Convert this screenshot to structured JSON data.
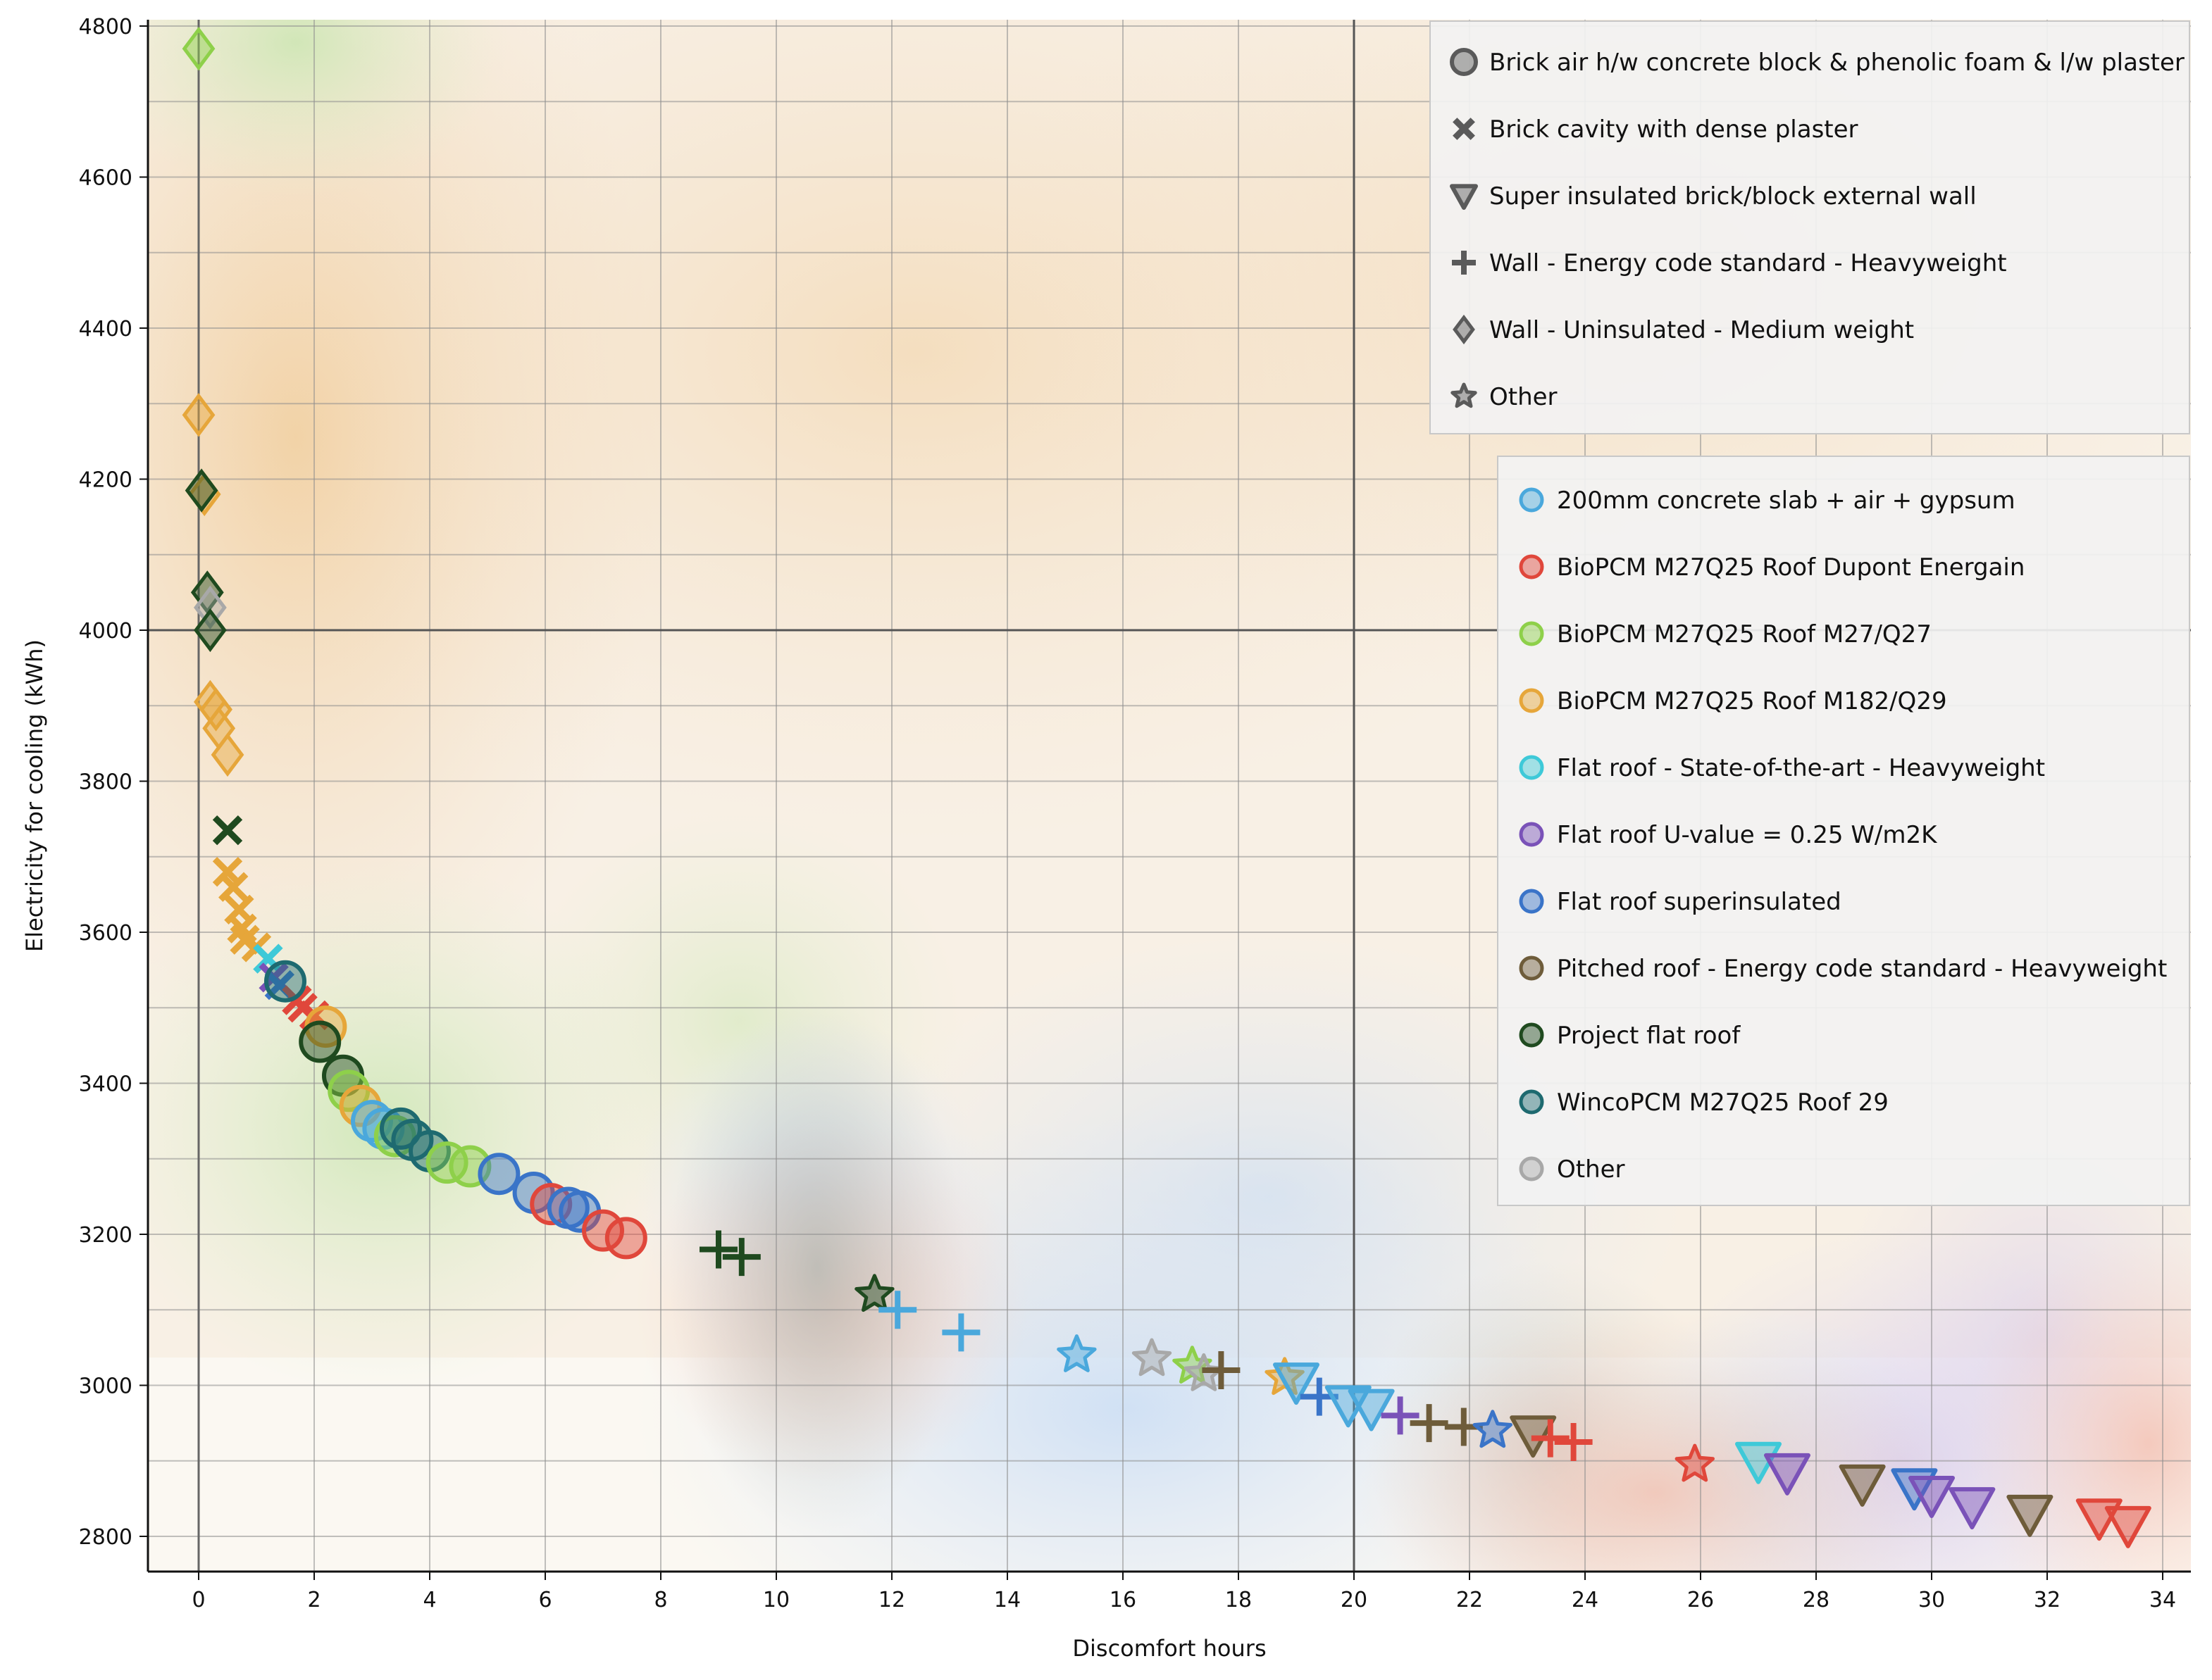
{
  "chart_data": {
    "type": "scatter",
    "xlabel": "Discomfort hours",
    "ylabel": "Electricity for cooling (kWh)",
    "xlim": [
      -0.9,
      34.3
    ],
    "ylim": [
      2765,
      4825
    ],
    "xticks": [
      0,
      2,
      4,
      6,
      8,
      10,
      12,
      14,
      16,
      18,
      20,
      22,
      24,
      26,
      28,
      30,
      32,
      34
    ],
    "yticks": [
      2800,
      3000,
      3200,
      3400,
      3600,
      3800,
      4000,
      4200,
      4400,
      4600,
      4800
    ],
    "grid": true,
    "reference_lines": {
      "x": 20,
      "y": 4000
    },
    "shape_legend": {
      "placement": "top-right",
      "items": [
        {
          "shape": "circle",
          "label": "Brick air h/w concrete block & phenolic foam & l/w plaster"
        },
        {
          "shape": "cross",
          "label": "Brick cavity with dense plaster"
        },
        {
          "shape": "triangle",
          "label": "Super insulated brick/block external wall"
        },
        {
          "shape": "plus",
          "label": "Wall - Energy code standard - Heavyweight"
        },
        {
          "shape": "diamond",
          "label": "Wall - Uninsulated - Medium weight"
        },
        {
          "shape": "star",
          "label": "Other"
        }
      ]
    },
    "color_legend": {
      "placement": "right",
      "items": [
        {
          "color": "#4aa8dc",
          "label": "200mm concrete slab + air + gypsum"
        },
        {
          "color": "#e0473b",
          "label": "BioPCM M27Q25 Roof Dupont Energain"
        },
        {
          "color": "#8ed04a",
          "label": "BioPCM M27Q25 Roof M27/Q27"
        },
        {
          "color": "#e6a63a",
          "label": "BioPCM M27Q25 Roof M182/Q29"
        },
        {
          "color": "#3ec9d8",
          "label": "Flat roof - State-of-the-art - Heavyweight"
        },
        {
          "color": "#7a52b8",
          "label": "Flat roof U-value = 0.25 W/m2K"
        },
        {
          "color": "#3a74c8",
          "label": "Flat roof superinsulated"
        },
        {
          "color": "#6e5c3a",
          "label": "Pitched roof - Energy code standard - Heavyweight"
        },
        {
          "color": "#1f4a1f",
          "label": "Project flat roof"
        },
        {
          "color": "#1e6a70",
          "label": "WincoPCM M27Q25 Roof 29"
        },
        {
          "color": "#a8a8a8",
          "label": "Other"
        }
      ]
    },
    "points": [
      {
        "x": 0.0,
        "y": 4770,
        "shape": "diamond",
        "color": 2
      },
      {
        "x": 0.0,
        "y": 4285,
        "shape": "diamond",
        "color": 3
      },
      {
        "x": 0.1,
        "y": 4180,
        "shape": "diamond",
        "color": 3
      },
      {
        "x": 0.05,
        "y": 4185,
        "shape": "diamond",
        "color": 8
      },
      {
        "x": 0.15,
        "y": 4050,
        "shape": "diamond",
        "color": 8
      },
      {
        "x": 0.2,
        "y": 4030,
        "shape": "diamond",
        "color": 10
      },
      {
        "x": 0.2,
        "y": 4000,
        "shape": "diamond",
        "color": 8
      },
      {
        "x": 0.2,
        "y": 3905,
        "shape": "diamond",
        "color": 3
      },
      {
        "x": 0.3,
        "y": 3895,
        "shape": "diamond",
        "color": 3
      },
      {
        "x": 0.35,
        "y": 3870,
        "shape": "diamond",
        "color": 3
      },
      {
        "x": 0.5,
        "y": 3835,
        "shape": "diamond",
        "color": 3
      },
      {
        "x": 0.5,
        "y": 3735,
        "shape": "cross",
        "color": 8
      },
      {
        "x": 0.5,
        "y": 3680,
        "shape": "cross",
        "color": 3
      },
      {
        "x": 0.6,
        "y": 3660,
        "shape": "cross",
        "color": 3
      },
      {
        "x": 0.7,
        "y": 3630,
        "shape": "cross",
        "color": 3
      },
      {
        "x": 0.75,
        "y": 3605,
        "shape": "cross",
        "color": 3
      },
      {
        "x": 0.8,
        "y": 3590,
        "shape": "cross",
        "color": 3
      },
      {
        "x": 1.0,
        "y": 3580,
        "shape": "cross",
        "color": 3
      },
      {
        "x": 1.2,
        "y": 3565,
        "shape": "cross",
        "color": 4
      },
      {
        "x": 1.3,
        "y": 3540,
        "shape": "cross",
        "color": 5
      },
      {
        "x": 1.4,
        "y": 3530,
        "shape": "cross",
        "color": 6
      },
      {
        "x": 1.7,
        "y": 3510,
        "shape": "cross",
        "color": 1
      },
      {
        "x": 1.8,
        "y": 3500,
        "shape": "cross",
        "color": 1
      },
      {
        "x": 2.0,
        "y": 3490,
        "shape": "cross",
        "color": 1
      },
      {
        "x": 1.5,
        "y": 3535,
        "shape": "circle",
        "color": 9
      },
      {
        "x": 2.2,
        "y": 3475,
        "shape": "circle",
        "color": 3
      },
      {
        "x": 2.1,
        "y": 3455,
        "shape": "circle",
        "color": 8
      },
      {
        "x": 2.5,
        "y": 3410,
        "shape": "circle",
        "color": 8
      },
      {
        "x": 2.6,
        "y": 3390,
        "shape": "circle",
        "color": 2
      },
      {
        "x": 2.8,
        "y": 3370,
        "shape": "circle",
        "color": 3
      },
      {
        "x": 3.0,
        "y": 3350,
        "shape": "circle",
        "color": 0
      },
      {
        "x": 3.2,
        "y": 3340,
        "shape": "circle",
        "color": 0
      },
      {
        "x": 3.4,
        "y": 3330,
        "shape": "circle",
        "color": 2
      },
      {
        "x": 3.5,
        "y": 3340,
        "shape": "circle",
        "color": 9
      },
      {
        "x": 3.7,
        "y": 3325,
        "shape": "circle",
        "color": 9
      },
      {
        "x": 4.0,
        "y": 3310,
        "shape": "circle",
        "color": 9
      },
      {
        "x": 4.3,
        "y": 3295,
        "shape": "circle",
        "color": 2
      },
      {
        "x": 4.7,
        "y": 3290,
        "shape": "circle",
        "color": 2
      },
      {
        "x": 5.2,
        "y": 3280,
        "shape": "circle",
        "color": 6
      },
      {
        "x": 5.8,
        "y": 3255,
        "shape": "circle",
        "color": 6
      },
      {
        "x": 6.1,
        "y": 3240,
        "shape": "circle",
        "color": 1
      },
      {
        "x": 6.4,
        "y": 3235,
        "shape": "circle",
        "color": 6
      },
      {
        "x": 6.6,
        "y": 3230,
        "shape": "circle",
        "color": 6
      },
      {
        "x": 7.0,
        "y": 3205,
        "shape": "circle",
        "color": 1
      },
      {
        "x": 7.4,
        "y": 3195,
        "shape": "circle",
        "color": 1
      },
      {
        "x": 9.0,
        "y": 3180,
        "shape": "plus",
        "color": 8
      },
      {
        "x": 9.4,
        "y": 3170,
        "shape": "plus",
        "color": 8
      },
      {
        "x": 11.7,
        "y": 3120,
        "shape": "star",
        "color": 8
      },
      {
        "x": 12.1,
        "y": 3100,
        "shape": "plus",
        "color": 0
      },
      {
        "x": 13.2,
        "y": 3070,
        "shape": "plus",
        "color": 0
      },
      {
        "x": 15.2,
        "y": 3040,
        "shape": "star",
        "color": 0
      },
      {
        "x": 16.5,
        "y": 3035,
        "shape": "star",
        "color": 10
      },
      {
        "x": 17.2,
        "y": 3025,
        "shape": "star",
        "color": 2
      },
      {
        "x": 17.4,
        "y": 3015,
        "shape": "star",
        "color": 10
      },
      {
        "x": 17.7,
        "y": 3020,
        "shape": "plus",
        "color": 7
      },
      {
        "x": 18.8,
        "y": 3010,
        "shape": "star",
        "color": 3
      },
      {
        "x": 19.0,
        "y": 3005,
        "shape": "triangle",
        "color": 0
      },
      {
        "x": 19.4,
        "y": 2985,
        "shape": "plus",
        "color": 6
      },
      {
        "x": 19.9,
        "y": 2975,
        "shape": "triangle",
        "color": 0
      },
      {
        "x": 20.3,
        "y": 2970,
        "shape": "triangle",
        "color": 0
      },
      {
        "x": 20.8,
        "y": 2960,
        "shape": "plus",
        "color": 5
      },
      {
        "x": 21.3,
        "y": 2950,
        "shape": "plus",
        "color": 7
      },
      {
        "x": 21.9,
        "y": 2945,
        "shape": "plus",
        "color": 7
      },
      {
        "x": 22.4,
        "y": 2940,
        "shape": "star",
        "color": 6
      },
      {
        "x": 23.1,
        "y": 2935,
        "shape": "triangle",
        "color": 7
      },
      {
        "x": 23.4,
        "y": 2930,
        "shape": "plus",
        "color": 1
      },
      {
        "x": 23.8,
        "y": 2925,
        "shape": "plus",
        "color": 1
      },
      {
        "x": 25.9,
        "y": 2895,
        "shape": "star",
        "color": 1
      },
      {
        "x": 27.0,
        "y": 2900,
        "shape": "triangle",
        "color": 4
      },
      {
        "x": 27.5,
        "y": 2885,
        "shape": "triangle",
        "color": 5
      },
      {
        "x": 28.8,
        "y": 2870,
        "shape": "triangle",
        "color": 7
      },
      {
        "x": 29.7,
        "y": 2865,
        "shape": "triangle",
        "color": 6
      },
      {
        "x": 30.0,
        "y": 2855,
        "shape": "triangle",
        "color": 5
      },
      {
        "x": 30.7,
        "y": 2840,
        "shape": "triangle",
        "color": 5
      },
      {
        "x": 31.7,
        "y": 2830,
        "shape": "triangle",
        "color": 7
      },
      {
        "x": 32.9,
        "y": 2825,
        "shape": "triangle",
        "color": 1
      },
      {
        "x": 33.4,
        "y": 2815,
        "shape": "triangle",
        "color": 1
      }
    ]
  }
}
